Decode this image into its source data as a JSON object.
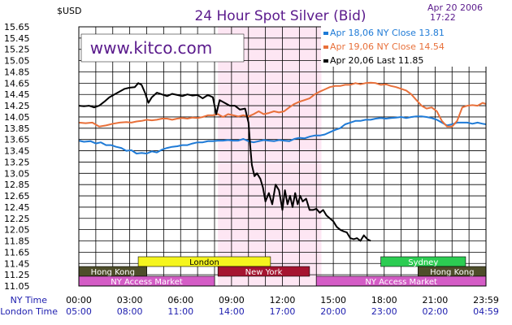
{
  "chart_data": {
    "type": "line",
    "title": "24 Hour Spot Silver (Bid)",
    "date": "Apr 20 2006",
    "time": "17:22",
    "unit": "$USD",
    "watermark": "www.kitco.com",
    "ylim": [
      11.05,
      15.65
    ],
    "y_ticks": [
      "15.65",
      "15.45",
      "15.25",
      "15.05",
      "14.85",
      "14.65",
      "14.45",
      "14.25",
      "14.05",
      "13.85",
      "13.65",
      "13.45",
      "13.25",
      "13.05",
      "12.85",
      "12.65",
      "12.45",
      "12.25",
      "12.05",
      "11.85",
      "11.65",
      "11.45",
      "11.25",
      "11.05"
    ],
    "x_hours": [
      0,
      3,
      6,
      9,
      12,
      15,
      18,
      21,
      24
    ],
    "ny_time_label": "NY Time",
    "london_time_label": "London Time",
    "ny_time_ticks": [
      "00:00",
      "03:00",
      "06:00",
      "09:00",
      "12:00",
      "15:00",
      "18:00",
      "21:00",
      "23:59"
    ],
    "london_time_ticks": [
      "05:00",
      "08:00",
      "11:00",
      "14:00",
      "17:00",
      "20:00",
      "23:00",
      "02:00",
      "04:59"
    ],
    "grid": true,
    "legend_position": "top-right",
    "shaded_region": {
      "from_hour": 8.2,
      "to_hour": 14.3
    },
    "series": [
      {
        "legend": "Apr 18,06  NY Close 13.81",
        "color": "#1e7ad6",
        "points": [
          [
            0,
            13.63
          ],
          [
            0.3,
            13.61
          ],
          [
            0.7,
            13.62
          ],
          [
            1.0,
            13.58
          ],
          [
            1.3,
            13.6
          ],
          [
            1.6,
            13.55
          ],
          [
            1.9,
            13.55
          ],
          [
            2.2,
            13.52
          ],
          [
            2.5,
            13.5
          ],
          [
            2.8,
            13.45
          ],
          [
            3.1,
            13.46
          ],
          [
            3.4,
            13.4
          ],
          [
            3.7,
            13.41
          ],
          [
            4.0,
            13.4
          ],
          [
            4.3,
            13.44
          ],
          [
            4.6,
            13.42
          ],
          [
            4.9,
            13.47
          ],
          [
            5.2,
            13.5
          ],
          [
            5.5,
            13.52
          ],
          [
            5.8,
            13.53
          ],
          [
            6.1,
            13.55
          ],
          [
            6.4,
            13.55
          ],
          [
            6.7,
            13.58
          ],
          [
            7.0,
            13.6
          ],
          [
            7.3,
            13.6
          ],
          [
            7.6,
            13.62
          ],
          [
            7.9,
            13.62
          ],
          [
            8.2,
            13.63
          ],
          [
            8.5,
            13.63
          ],
          [
            8.8,
            13.64
          ],
          [
            9.1,
            13.63
          ],
          [
            9.4,
            13.63
          ],
          [
            9.7,
            13.66
          ],
          [
            10.0,
            13.62
          ],
          [
            10.3,
            13.6
          ],
          [
            10.6,
            13.62
          ],
          [
            10.9,
            13.64
          ],
          [
            11.2,
            13.63
          ],
          [
            11.5,
            13.62
          ],
          [
            11.8,
            13.64
          ],
          [
            12.1,
            13.63
          ],
          [
            12.4,
            13.62
          ],
          [
            12.7,
            13.66
          ],
          [
            13.0,
            13.68
          ],
          [
            13.3,
            13.67
          ],
          [
            13.6,
            13.7
          ],
          [
            13.9,
            13.72
          ],
          [
            14.2,
            13.72
          ],
          [
            14.5,
            13.74
          ],
          [
            14.8,
            13.78
          ],
          [
            15.1,
            13.82
          ],
          [
            15.4,
            13.85
          ],
          [
            15.7,
            13.92
          ],
          [
            16.0,
            13.95
          ],
          [
            16.3,
            13.98
          ],
          [
            16.6,
            13.98
          ],
          [
            16.9,
            14.0
          ],
          [
            17.2,
            14.0
          ],
          [
            17.5,
            14.02
          ],
          [
            17.8,
            14.03
          ],
          [
            18.1,
            14.02
          ],
          [
            18.4,
            14.03
          ],
          [
            18.7,
            14.04
          ],
          [
            19.0,
            14.05
          ],
          [
            19.3,
            14.03
          ],
          [
            19.6,
            14.05
          ],
          [
            19.9,
            14.06
          ],
          [
            20.2,
            14.06
          ],
          [
            20.5,
            14.05
          ],
          [
            20.8,
            14.03
          ],
          [
            21.1,
            14.0
          ],
          [
            21.4,
            13.95
          ],
          [
            21.7,
            13.9
          ],
          [
            22.0,
            13.92
          ],
          [
            22.3,
            13.95
          ],
          [
            22.6,
            13.95
          ],
          [
            22.9,
            13.95
          ],
          [
            23.2,
            13.93
          ],
          [
            23.5,
            13.95
          ],
          [
            23.8,
            13.93
          ],
          [
            24.0,
            13.92
          ]
        ]
      },
      {
        "legend": "Apr 19,06  NY Close 14.54",
        "color": "#e8703a",
        "points": [
          [
            0,
            13.95
          ],
          [
            0.4,
            13.94
          ],
          [
            0.8,
            13.95
          ],
          [
            1.2,
            13.88
          ],
          [
            1.6,
            13.9
          ],
          [
            2.0,
            13.93
          ],
          [
            2.4,
            13.95
          ],
          [
            2.8,
            13.96
          ],
          [
            3.1,
            13.95
          ],
          [
            3.4,
            13.97
          ],
          [
            3.7,
            13.98
          ],
          [
            4.0,
            14.0
          ],
          [
            4.3,
            13.99
          ],
          [
            4.6,
            14.0
          ],
          [
            4.9,
            14.02
          ],
          [
            5.2,
            14.02
          ],
          [
            5.5,
            14.0
          ],
          [
            5.8,
            14.02
          ],
          [
            6.1,
            14.03
          ],
          [
            6.4,
            14.02
          ],
          [
            6.7,
            14.04
          ],
          [
            7.0,
            14.03
          ],
          [
            7.3,
            14.05
          ],
          [
            7.6,
            14.08
          ],
          [
            7.9,
            14.08
          ],
          [
            8.2,
            14.1
          ],
          [
            8.5,
            14.05
          ],
          [
            8.8,
            14.1
          ],
          [
            9.1,
            14.08
          ],
          [
            9.4,
            14.06
          ],
          [
            9.7,
            14.08
          ],
          [
            10.0,
            14.06
          ],
          [
            10.3,
            14.1
          ],
          [
            10.6,
            14.15
          ],
          [
            10.9,
            14.1
          ],
          [
            11.2,
            14.12
          ],
          [
            11.5,
            14.15
          ],
          [
            11.8,
            14.13
          ],
          [
            12.1,
            14.15
          ],
          [
            12.4,
            14.22
          ],
          [
            12.7,
            14.28
          ],
          [
            13.0,
            14.32
          ],
          [
            13.3,
            14.35
          ],
          [
            13.6,
            14.38
          ],
          [
            13.9,
            14.45
          ],
          [
            14.2,
            14.5
          ],
          [
            14.5,
            14.54
          ],
          [
            14.8,
            14.58
          ],
          [
            15.1,
            14.6
          ],
          [
            15.4,
            14.6
          ],
          [
            15.7,
            14.62
          ],
          [
            16.0,
            14.62
          ],
          [
            16.3,
            14.65
          ],
          [
            16.6,
            14.63
          ],
          [
            16.9,
            14.65
          ],
          [
            17.2,
            14.66
          ],
          [
            17.5,
            14.65
          ],
          [
            17.8,
            14.62
          ],
          [
            18.1,
            14.63
          ],
          [
            18.4,
            14.6
          ],
          [
            18.7,
            14.58
          ],
          [
            19.0,
            14.55
          ],
          [
            19.3,
            14.52
          ],
          [
            19.6,
            14.45
          ],
          [
            19.9,
            14.35
          ],
          [
            20.2,
            14.25
          ],
          [
            20.5,
            14.2
          ],
          [
            20.8,
            14.22
          ],
          [
            21.1,
            14.15
          ],
          [
            21.4,
            13.98
          ],
          [
            21.7,
            13.88
          ],
          [
            22.0,
            13.88
          ],
          [
            22.3,
            13.98
          ],
          [
            22.6,
            14.22
          ],
          [
            22.9,
            14.25
          ],
          [
            23.2,
            14.26
          ],
          [
            23.5,
            14.25
          ],
          [
            23.8,
            14.3
          ],
          [
            24.0,
            14.28
          ]
        ]
      },
      {
        "legend": "Apr 20,06  Last 11.85",
        "color": "#000000",
        "points": [
          [
            0,
            14.25
          ],
          [
            0.3,
            14.24
          ],
          [
            0.6,
            14.25
          ],
          [
            0.9,
            14.22
          ],
          [
            1.2,
            14.25
          ],
          [
            1.5,
            14.32
          ],
          [
            1.8,
            14.4
          ],
          [
            2.1,
            14.45
          ],
          [
            2.4,
            14.5
          ],
          [
            2.7,
            14.55
          ],
          [
            3.0,
            14.57
          ],
          [
            3.3,
            14.58
          ],
          [
            3.5,
            14.65
          ],
          [
            3.7,
            14.62
          ],
          [
            3.9,
            14.48
          ],
          [
            4.1,
            14.3
          ],
          [
            4.3,
            14.4
          ],
          [
            4.6,
            14.48
          ],
          [
            4.9,
            14.45
          ],
          [
            5.2,
            14.42
          ],
          [
            5.5,
            14.46
          ],
          [
            5.8,
            14.44
          ],
          [
            6.1,
            14.42
          ],
          [
            6.4,
            14.45
          ],
          [
            6.7,
            14.43
          ],
          [
            7.0,
            14.44
          ],
          [
            7.3,
            14.38
          ],
          [
            7.6,
            14.44
          ],
          [
            7.9,
            14.4
          ],
          [
            8.1,
            14.1
          ],
          [
            8.3,
            14.35
          ],
          [
            8.6,
            14.3
          ],
          [
            8.9,
            14.25
          ],
          [
            9.2,
            14.25
          ],
          [
            9.5,
            14.18
          ],
          [
            9.8,
            14.2
          ],
          [
            10.0,
            13.95
          ],
          [
            10.1,
            13.55
          ],
          [
            10.2,
            13.2
          ],
          [
            10.35,
            13.0
          ],
          [
            10.5,
            13.05
          ],
          [
            10.7,
            12.95
          ],
          [
            10.85,
            12.8
          ],
          [
            11.0,
            12.55
          ],
          [
            11.2,
            12.7
          ],
          [
            11.4,
            12.5
          ],
          [
            11.6,
            12.85
          ],
          [
            11.8,
            12.75
          ],
          [
            12.0,
            12.4
          ],
          [
            12.15,
            12.75
          ],
          [
            12.3,
            12.5
          ],
          [
            12.45,
            12.65
          ],
          [
            12.6,
            12.45
          ],
          [
            12.75,
            12.7
          ],
          [
            12.9,
            12.5
          ],
          [
            13.05,
            12.65
          ],
          [
            13.2,
            12.55
          ],
          [
            13.4,
            12.6
          ],
          [
            13.6,
            12.4
          ],
          [
            13.8,
            12.4
          ],
          [
            14.0,
            12.42
          ],
          [
            14.2,
            12.35
          ],
          [
            14.4,
            12.4
          ],
          [
            14.6,
            12.3
          ],
          [
            14.8,
            12.25
          ],
          [
            15.0,
            12.2
          ],
          [
            15.2,
            12.1
          ],
          [
            15.4,
            12.05
          ],
          [
            15.6,
            12.02
          ],
          [
            15.8,
            12.0
          ],
          [
            16.0,
            11.9
          ],
          [
            16.2,
            11.88
          ],
          [
            16.4,
            11.9
          ],
          [
            16.6,
            11.85
          ],
          [
            16.8,
            11.95
          ],
          [
            17.0,
            11.88
          ],
          [
            17.2,
            11.85
          ]
        ]
      }
    ]
  },
  "sessions": [
    {
      "label": "London",
      "from_hour": 3.5,
      "to_hour": 11.3,
      "row": 0,
      "fill": "#f5f51e",
      "text": "#000000"
    },
    {
      "label": "Sydney",
      "from_hour": 17.8,
      "to_hour": 22.8,
      "row": 0,
      "fill": "#2ccc52",
      "text": "#ffffff"
    },
    {
      "label": "Hong Kong",
      "from_hour": 0,
      "to_hour": 4.0,
      "row": 1,
      "fill": "#4e4e2a",
      "text": "#ffffff"
    },
    {
      "label": "New York",
      "from_hour": 8.2,
      "to_hour": 13.6,
      "row": 1,
      "fill": "#a51430",
      "text": "#ffffff"
    },
    {
      "label": "Hong Kong",
      "from_hour": 20.0,
      "to_hour": 24.0,
      "row": 1,
      "fill": "#4e4e2a",
      "text": "#ffffff"
    },
    {
      "label": "NY Access Market",
      "from_hour": 0,
      "to_hour": 8.0,
      "row": 2,
      "fill": "#d45cc6",
      "text": "#ffffff"
    },
    {
      "label": "NY Access Market",
      "from_hour": 14.0,
      "to_hour": 24.0,
      "row": 2,
      "fill": "#d45cc6",
      "text": "#ffffff"
    }
  ]
}
